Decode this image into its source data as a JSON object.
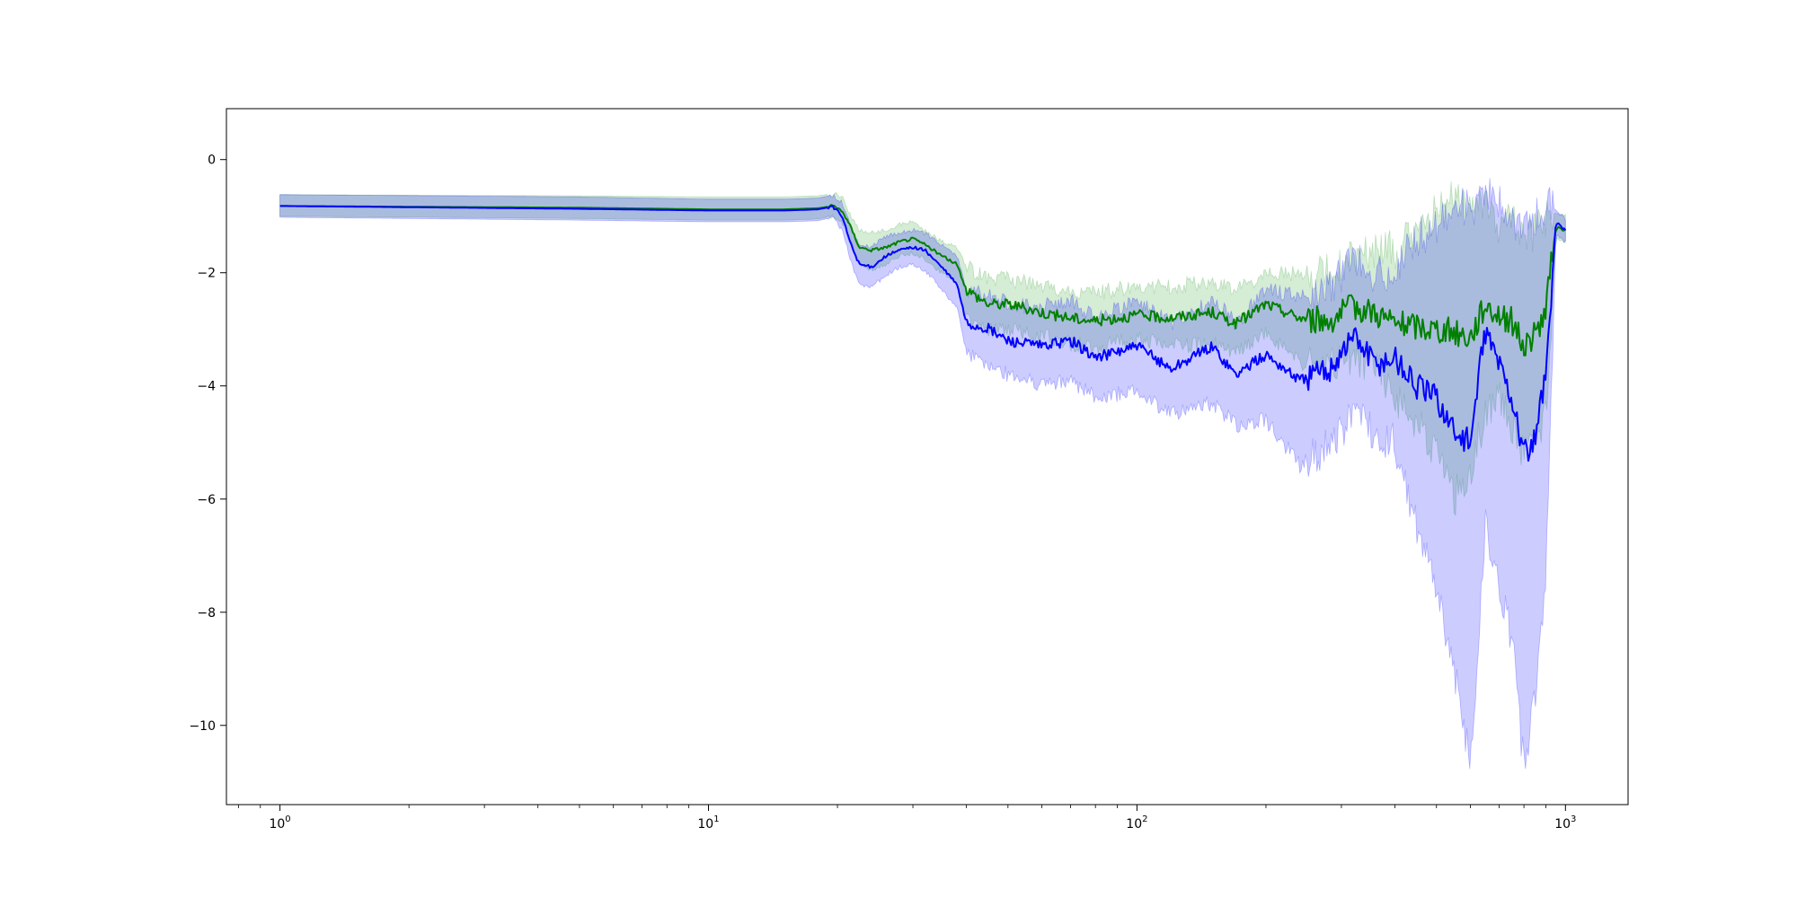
{
  "chart_data": {
    "type": "line",
    "title": "",
    "xlabel": "",
    "ylabel": "",
    "x_scale": "log",
    "xlim": [
      0.75,
      1400
    ],
    "ylim": [
      -11.4,
      0.9
    ],
    "grid": false,
    "legend": "none",
    "x_ticks": [
      {
        "value": 1,
        "base": "10",
        "exp": "0"
      },
      {
        "value": 10,
        "base": "10",
        "exp": "1"
      },
      {
        "value": 100,
        "base": "10",
        "exp": "2"
      },
      {
        "value": 1000,
        "base": "10",
        "exp": "3"
      }
    ],
    "y_ticks": [
      {
        "value": 0,
        "label": "0"
      },
      {
        "value": -2,
        "label": "−2"
      },
      {
        "value": -4,
        "label": "−4"
      },
      {
        "value": -6,
        "label": "−6"
      },
      {
        "value": -8,
        "label": "−8"
      },
      {
        "value": -10,
        "label": "−10"
      }
    ],
    "series": [
      {
        "color": "#008000",
        "band_color": "#2ca02c",
        "x": [
          1,
          5,
          10,
          15,
          18,
          19.5,
          20.5,
          21.5,
          22.5,
          24,
          26,
          28,
          30,
          32,
          35,
          38,
          40,
          45,
          50,
          60,
          70,
          80,
          100,
          120,
          150,
          170,
          200,
          240,
          280,
          320,
          360,
          400,
          450,
          500,
          550,
          600,
          650,
          700,
          750,
          800,
          850,
          900,
          950,
          1000
        ],
        "mean": [
          -0.82,
          -0.85,
          -0.88,
          -0.88,
          -0.86,
          -0.82,
          -0.9,
          -1.2,
          -1.55,
          -1.6,
          -1.55,
          -1.45,
          -1.4,
          -1.5,
          -1.7,
          -1.85,
          -2.3,
          -2.55,
          -2.55,
          -2.7,
          -2.8,
          -2.85,
          -2.75,
          -2.8,
          -2.7,
          -2.9,
          -2.55,
          -2.8,
          -2.85,
          -2.6,
          -2.7,
          -2.9,
          -2.95,
          -3.0,
          -3.05,
          -3.15,
          -2.55,
          -2.75,
          -2.85,
          -3.3,
          -3.1,
          -2.65,
          -1.2,
          -1.25
        ],
        "lower": [
          -1.0,
          -1.04,
          -1.07,
          -1.07,
          -1.05,
          -1.0,
          -1.1,
          -1.45,
          -1.85,
          -1.95,
          -1.85,
          -1.7,
          -1.65,
          -1.75,
          -2.0,
          -2.2,
          -2.8,
          -3.0,
          -3.0,
          -3.1,
          -3.25,
          -3.3,
          -3.15,
          -3.3,
          -3.25,
          -3.45,
          -3.05,
          -3.6,
          -3.7,
          -3.5,
          -3.6,
          -4.2,
          -4.6,
          -5.2,
          -6.0,
          -5.5,
          -4.5,
          -4.2,
          -4.8,
          -5.2,
          -5.0,
          -4.5,
          -1.4,
          -1.45
        ],
        "upper": [
          -0.62,
          -0.64,
          -0.66,
          -0.66,
          -0.64,
          -0.6,
          -0.65,
          -1.0,
          -1.25,
          -1.3,
          -1.25,
          -1.15,
          -1.1,
          -1.25,
          -1.45,
          -1.55,
          -1.9,
          -2.1,
          -2.1,
          -2.25,
          -2.35,
          -2.35,
          -2.25,
          -2.25,
          -2.15,
          -2.3,
          -2.05,
          -2.0,
          -2.0,
          -1.7,
          -1.6,
          -1.6,
          -1.3,
          -0.9,
          -0.6,
          -0.8,
          -0.7,
          -1.2,
          -1.0,
          -1.5,
          -1.3,
          -1.0,
          -0.95,
          -1.0
        ]
      },
      {
        "color": "#0000ff",
        "band_color": "#0000ff",
        "x": [
          1,
          5,
          10,
          15,
          18,
          19.5,
          20.5,
          21.5,
          22.5,
          24,
          26,
          28,
          30,
          32,
          35,
          38,
          40,
          45,
          50,
          60,
          70,
          80,
          100,
          120,
          150,
          170,
          200,
          240,
          280,
          320,
          360,
          400,
          450,
          500,
          550,
          600,
          650,
          700,
          750,
          800,
          850,
          900,
          950,
          1000
        ],
        "mean": [
          -0.82,
          -0.87,
          -0.9,
          -0.9,
          -0.88,
          -0.83,
          -1.0,
          -1.5,
          -1.85,
          -1.9,
          -1.7,
          -1.6,
          -1.55,
          -1.6,
          -1.9,
          -2.2,
          -2.9,
          -3.0,
          -3.2,
          -3.3,
          -3.2,
          -3.5,
          -3.3,
          -3.7,
          -3.3,
          -3.8,
          -3.45,
          -3.9,
          -3.7,
          -3.1,
          -3.6,
          -3.5,
          -4.0,
          -4.2,
          -4.8,
          -5.0,
          -3.0,
          -3.6,
          -4.2,
          -5.2,
          -5.0,
          -3.8,
          -1.1,
          -1.25
        ],
        "lower": [
          -1.02,
          -1.07,
          -1.1,
          -1.1,
          -1.08,
          -1.02,
          -1.25,
          -1.8,
          -2.2,
          -2.25,
          -2.05,
          -1.9,
          -1.85,
          -1.95,
          -2.3,
          -2.6,
          -3.4,
          -3.6,
          -3.8,
          -4.0,
          -3.9,
          -4.2,
          -4.1,
          -4.5,
          -4.3,
          -4.7,
          -4.6,
          -5.4,
          -5.1,
          -4.5,
          -4.9,
          -5.0,
          -6.5,
          -7.5,
          -9.0,
          -10.7,
          -6.5,
          -7.5,
          -8.5,
          -10.8,
          -9.5,
          -7.5,
          -1.3,
          -1.45
        ],
        "upper": [
          -0.62,
          -0.66,
          -0.7,
          -0.7,
          -0.68,
          -0.63,
          -0.75,
          -1.2,
          -1.5,
          -1.55,
          -1.35,
          -1.3,
          -1.25,
          -1.3,
          -1.5,
          -1.7,
          -2.3,
          -2.4,
          -2.55,
          -2.6,
          -2.5,
          -2.8,
          -2.5,
          -2.9,
          -2.45,
          -2.9,
          -2.3,
          -2.4,
          -2.3,
          -1.7,
          -2.1,
          -1.9,
          -1.4,
          -1.2,
          -0.8,
          -0.9,
          -0.6,
          -0.7,
          -1.0,
          -1.3,
          -1.0,
          -0.8,
          -0.9,
          -1.05
        ]
      }
    ]
  }
}
